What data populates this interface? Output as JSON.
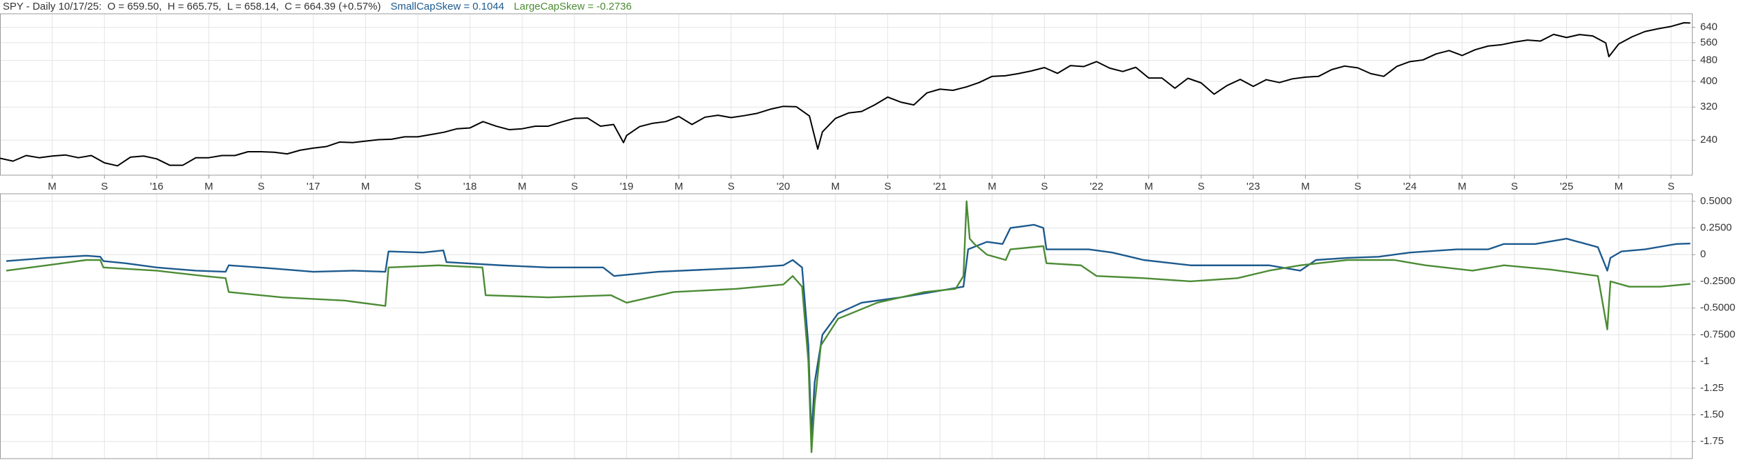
{
  "chart_data": [
    {
      "type": "line",
      "log": true,
      "grid": true,
      "title": "SPY - Daily 10/17/25:  O = 659.50,  H = 665.75,  L = 658.14,  C = 664.39 (+0.57%)",
      "xlim": [
        2015.0,
        2025.8
      ],
      "ylim": [
        177,
        720
      ],
      "yticks": [
        240,
        320,
        400,
        480,
        560,
        640
      ],
      "xticks": [
        {
          "value": 2015.333,
          "label": "M"
        },
        {
          "value": 2015.667,
          "label": "S"
        },
        {
          "value": 2016,
          "label": "'16"
        },
        {
          "value": 2016.333,
          "label": "M"
        },
        {
          "value": 2016.667,
          "label": "S"
        },
        {
          "value": 2017,
          "label": "'17"
        },
        {
          "value": 2017.333,
          "label": "M"
        },
        {
          "value": 2017.667,
          "label": "S"
        },
        {
          "value": 2018,
          "label": "'18"
        },
        {
          "value": 2018.333,
          "label": "M"
        },
        {
          "value": 2018.667,
          "label": "S"
        },
        {
          "value": 2019,
          "label": "'19"
        },
        {
          "value": 2019.333,
          "label": "M"
        },
        {
          "value": 2019.667,
          "label": "S"
        },
        {
          "value": 2020,
          "label": "'20"
        },
        {
          "value": 2020.333,
          "label": "M"
        },
        {
          "value": 2020.667,
          "label": "S"
        },
        {
          "value": 2021,
          "label": "'21"
        },
        {
          "value": 2021.333,
          "label": "M"
        },
        {
          "value": 2021.667,
          "label": "S"
        },
        {
          "value": 2022,
          "label": "'22"
        },
        {
          "value": 2022.333,
          "label": "M"
        },
        {
          "value": 2022.667,
          "label": "S"
        },
        {
          "value": 2023,
          "label": "'23"
        },
        {
          "value": 2023.333,
          "label": "M"
        },
        {
          "value": 2023.667,
          "label": "S"
        },
        {
          "value": 2024,
          "label": "'24"
        },
        {
          "value": 2024.333,
          "label": "M"
        },
        {
          "value": 2024.667,
          "label": "S"
        },
        {
          "value": 2025,
          "label": "'25"
        },
        {
          "value": 2025.333,
          "label": "M"
        },
        {
          "value": 2025.667,
          "label": "S"
        }
      ],
      "x": [
        2015.0,
        2015.083,
        2015.167,
        2015.25,
        2015.333,
        2015.417,
        2015.5,
        2015.583,
        2015.667,
        2015.75,
        2015.833,
        2015.917,
        2016.0,
        2016.083,
        2016.167,
        2016.25,
        2016.333,
        2016.417,
        2016.5,
        2016.583,
        2016.667,
        2016.75,
        2016.833,
        2016.917,
        2017.0,
        2017.083,
        2017.167,
        2017.25,
        2017.333,
        2017.417,
        2017.5,
        2017.583,
        2017.667,
        2017.75,
        2017.833,
        2017.917,
        2018.0,
        2018.083,
        2018.167,
        2018.25,
        2018.333,
        2018.417,
        2018.5,
        2018.583,
        2018.667,
        2018.75,
        2018.833,
        2018.917,
        2018.98,
        2019.0,
        2019.083,
        2019.167,
        2019.25,
        2019.333,
        2019.417,
        2019.5,
        2019.583,
        2019.667,
        2019.75,
        2019.833,
        2019.917,
        2020.0,
        2020.083,
        2020.167,
        2020.22,
        2020.25,
        2020.333,
        2020.417,
        2020.5,
        2020.583,
        2020.667,
        2020.75,
        2020.833,
        2020.917,
        2021.0,
        2021.083,
        2021.167,
        2021.25,
        2021.333,
        2021.417,
        2021.5,
        2021.583,
        2021.667,
        2021.75,
        2021.833,
        2021.917,
        2022.0,
        2022.083,
        2022.167,
        2022.25,
        2022.333,
        2022.417,
        2022.5,
        2022.583,
        2022.667,
        2022.75,
        2022.833,
        2022.917,
        2023.0,
        2023.083,
        2023.167,
        2023.25,
        2023.333,
        2023.417,
        2023.5,
        2023.583,
        2023.667,
        2023.75,
        2023.833,
        2023.917,
        2024.0,
        2024.083,
        2024.167,
        2024.25,
        2024.333,
        2024.417,
        2024.5,
        2024.583,
        2024.667,
        2024.75,
        2024.833,
        2024.917,
        2025.0,
        2025.083,
        2025.167,
        2025.25,
        2025.27,
        2025.333,
        2025.417,
        2025.5,
        2025.583,
        2025.667,
        2025.75,
        2025.79
      ],
      "series": [
        {
          "color": "#000000",
          "values": [
            205,
            200,
            210,
            206,
            209,
            211,
            206,
            210,
            197,
            192,
            207,
            209,
            204,
            193,
            193,
            206,
            206,
            210,
            210,
            217,
            217,
            216,
            213,
            220,
            224,
            227,
            236,
            235,
            238,
            241,
            242,
            247,
            247,
            252,
            257,
            265,
            267,
            282,
            271,
            263,
            265,
            271,
            271,
            281,
            290,
            291,
            271,
            275,
            235,
            250,
            270,
            278,
            282,
            295,
            275,
            293,
            298,
            292,
            297,
            303,
            314,
            322,
            321,
            296,
            222,
            258,
            290,
            304,
            308,
            326,
            349,
            334,
            326,
            362,
            374,
            370,
            381,
            396,
            418,
            420,
            428,
            438,
            451,
            429,
            459,
            455,
            475,
            449,
            436,
            452,
            412,
            412,
            377,
            411,
            395,
            358,
            386,
            407,
            383,
            406,
            396,
            409,
            415,
            418,
            443,
            457,
            450,
            428,
            418,
            456,
            475,
            482,
            508,
            523,
            501,
            527,
            544,
            550,
            563,
            573,
            568,
            602,
            586,
            601,
            594,
            559,
            496,
            554,
            589,
            617,
            632,
            645,
            666,
            664.39
          ]
        }
      ]
    },
    {
      "type": "line",
      "grid": true,
      "xlim": [
        2015.0,
        2025.8
      ],
      "ylim": [
        -1.91,
        0.57
      ],
      "yticks": [
        {
          "value": 0.5,
          "label": "0.5000"
        },
        {
          "value": 0.25,
          "label": "0.2500"
        },
        0,
        {
          "value": -0.25,
          "label": "-0.2500"
        },
        {
          "value": -0.5,
          "label": "-0.5000"
        },
        {
          "value": -0.75,
          "label": "-0.7500"
        },
        -1,
        -1.25,
        {
          "value": -1.5,
          "label": "-1.50"
        },
        -1.75
      ],
      "series": [
        {
          "name": "SmallCapSkew = 0.1044",
          "color": "#1d5a8e",
          "x": [
            2015.04,
            2015.3,
            2015.55,
            2015.64,
            2015.66,
            2015.8,
            2016.0,
            2016.25,
            2016.44,
            2016.46,
            2016.75,
            2017.0,
            2017.25,
            2017.46,
            2017.48,
            2017.7,
            2017.83,
            2017.85,
            2018.2,
            2018.5,
            2018.85,
            2018.92,
            2019.2,
            2019.5,
            2019.8,
            2020.0,
            2020.06,
            2020.12,
            2020.16,
            2020.18,
            2020.2,
            2020.25,
            2020.35,
            2020.5,
            2020.75,
            2020.95,
            2021.15,
            2021.18,
            2021.3,
            2021.4,
            2021.45,
            2021.6,
            2021.66,
            2021.68,
            2021.95,
            2022.1,
            2022.3,
            2022.6,
            2022.9,
            2023.1,
            2023.3,
            2023.4,
            2023.6,
            2023.8,
            2024.0,
            2024.3,
            2024.5,
            2024.6,
            2024.8,
            2025.0,
            2025.2,
            2025.26,
            2025.28,
            2025.35,
            2025.5,
            2025.7,
            2025.79
          ],
          "values": [
            -0.06,
            -0.03,
            -0.01,
            -0.02,
            -0.06,
            -0.08,
            -0.12,
            -0.15,
            -0.16,
            -0.1,
            -0.13,
            -0.16,
            -0.15,
            -0.16,
            0.03,
            0.02,
            0.04,
            -0.07,
            -0.1,
            -0.12,
            -0.12,
            -0.2,
            -0.16,
            -0.14,
            -0.12,
            -0.1,
            -0.05,
            -0.12,
            -0.85,
            -1.7,
            -1.2,
            -0.75,
            -0.55,
            -0.45,
            -0.4,
            -0.35,
            -0.3,
            0.05,
            0.12,
            0.1,
            0.25,
            0.28,
            0.25,
            0.05,
            0.05,
            0.02,
            -0.05,
            -0.1,
            -0.1,
            -0.1,
            -0.15,
            -0.05,
            -0.03,
            -0.02,
            0.02,
            0.05,
            0.05,
            0.1,
            0.1,
            0.15,
            0.07,
            -0.15,
            -0.03,
            0.03,
            0.05,
            0.1,
            0.1044
          ]
        },
        {
          "name": "LargeCapSkew = -0.2736",
          "color": "#4b8b34",
          "x": [
            2015.04,
            2015.3,
            2015.55,
            2015.64,
            2015.66,
            2016.0,
            2016.3,
            2016.44,
            2016.46,
            2016.8,
            2017.2,
            2017.46,
            2017.48,
            2017.8,
            2018.08,
            2018.1,
            2018.5,
            2018.9,
            2019.0,
            2019.3,
            2019.7,
            2020.0,
            2020.06,
            2020.12,
            2020.16,
            2020.18,
            2020.2,
            2020.24,
            2020.35,
            2020.6,
            2020.9,
            2021.1,
            2021.15,
            2021.17,
            2021.19,
            2021.22,
            2021.3,
            2021.42,
            2021.45,
            2021.66,
            2021.68,
            2021.9,
            2022.0,
            2022.3,
            2022.6,
            2022.9,
            2023.1,
            2023.3,
            2023.6,
            2023.9,
            2024.1,
            2024.4,
            2024.6,
            2024.9,
            2025.2,
            2025.26,
            2025.28,
            2025.4,
            2025.6,
            2025.79
          ],
          "values": [
            -0.15,
            -0.1,
            -0.05,
            -0.05,
            -0.12,
            -0.15,
            -0.2,
            -0.22,
            -0.35,
            -0.4,
            -0.43,
            -0.48,
            -0.12,
            -0.1,
            -0.12,
            -0.38,
            -0.4,
            -0.38,
            -0.45,
            -0.35,
            -0.32,
            -0.28,
            -0.2,
            -0.3,
            -1.0,
            -1.85,
            -1.4,
            -0.85,
            -0.6,
            -0.45,
            -0.35,
            -0.32,
            -0.2,
            0.5,
            0.15,
            0.1,
            0.0,
            -0.05,
            0.05,
            0.08,
            -0.08,
            -0.1,
            -0.2,
            -0.22,
            -0.25,
            -0.22,
            -0.15,
            -0.1,
            -0.05,
            -0.05,
            -0.1,
            -0.15,
            -0.1,
            -0.14,
            -0.2,
            -0.7,
            -0.25,
            -0.3,
            -0.3,
            -0.2736
          ]
        }
      ]
    }
  ]
}
